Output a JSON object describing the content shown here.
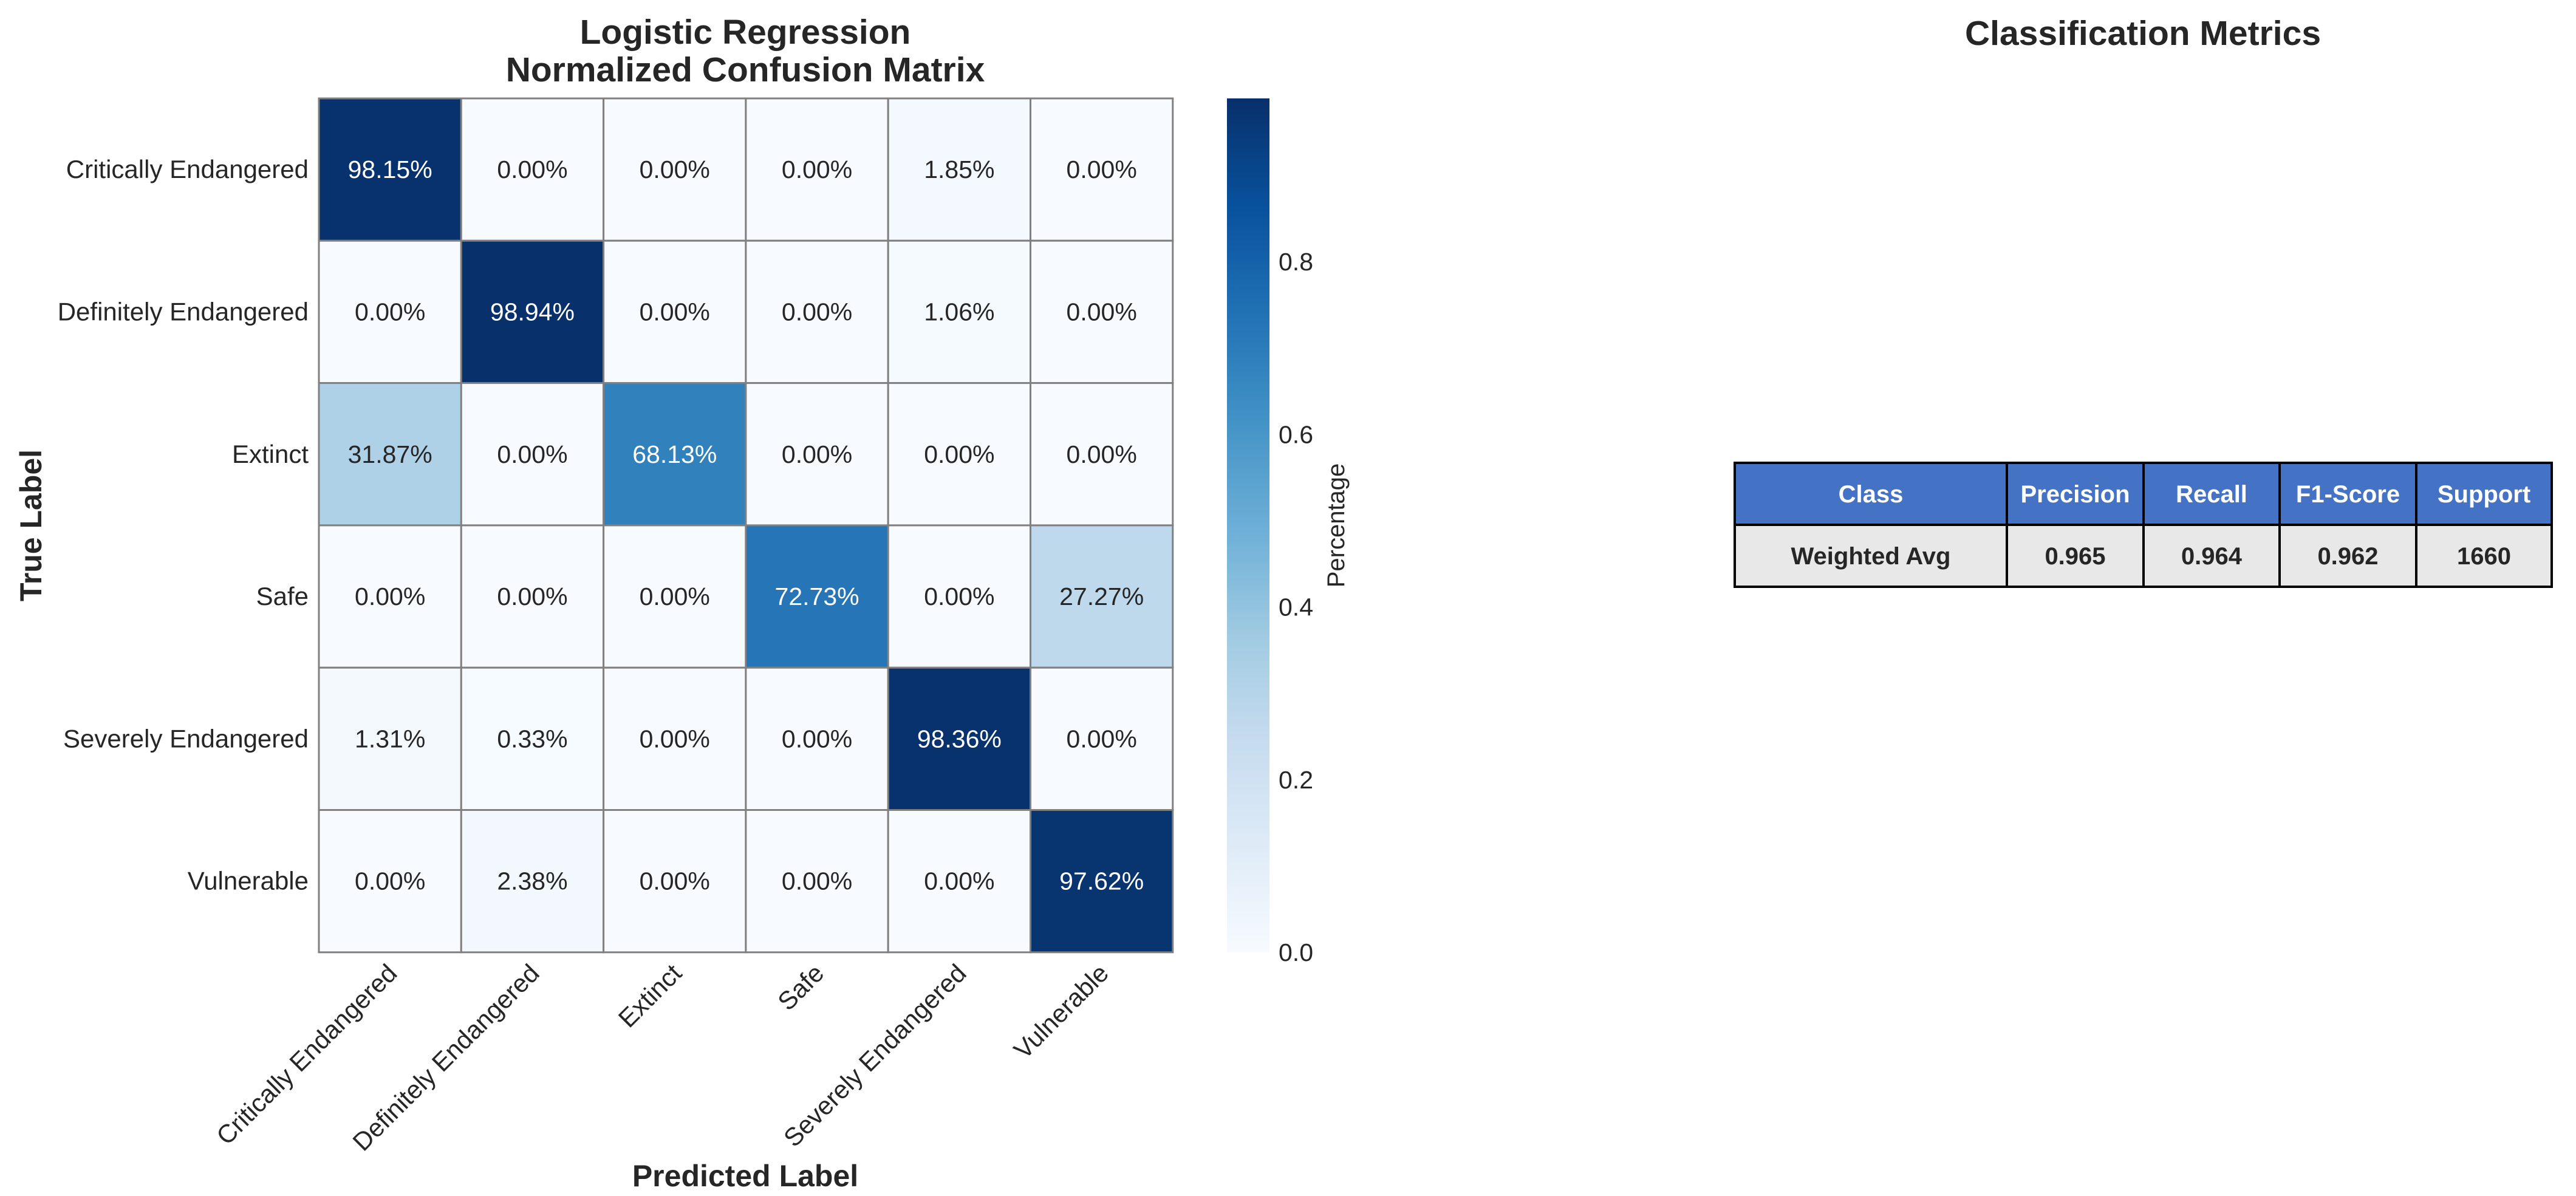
{
  "chart_data": [
    {
      "type": "heatmap",
      "title": "Logistic Regression\nNormalized Confusion Matrix",
      "xlabel": "Predicted Label",
      "ylabel": "True Label",
      "x_categories": [
        "Critically Endangered",
        "Definitely Endangered",
        "Extinct",
        "Safe",
        "Severely Endangered",
        "Vulnerable"
      ],
      "y_categories": [
        "Critically Endangered",
        "Definitely Endangered",
        "Extinct",
        "Safe",
        "Severely Endangered",
        "Vulnerable"
      ],
      "values": [
        [
          0.9815,
          0.0,
          0.0,
          0.0,
          0.0185,
          0.0
        ],
        [
          0.0,
          0.9894,
          0.0,
          0.0,
          0.0106,
          0.0
        ],
        [
          0.3187,
          0.0,
          0.6813,
          0.0,
          0.0,
          0.0
        ],
        [
          0.0,
          0.0,
          0.0,
          0.7273,
          0.0,
          0.2727
        ],
        [
          0.0131,
          0.0033,
          0.0,
          0.0,
          0.9836,
          0.0
        ],
        [
          0.0,
          0.0238,
          0.0,
          0.0,
          0.0,
          0.9762
        ]
      ],
      "cell_labels": [
        [
          "98.15%",
          "0.00%",
          "0.00%",
          "0.00%",
          "1.85%",
          "0.00%"
        ],
        [
          "0.00%",
          "98.94%",
          "0.00%",
          "0.00%",
          "1.06%",
          "0.00%"
        ],
        [
          "31.87%",
          "0.00%",
          "68.13%",
          "0.00%",
          "0.00%",
          "0.00%"
        ],
        [
          "0.00%",
          "0.00%",
          "0.00%",
          "72.73%",
          "0.00%",
          "27.27%"
        ],
        [
          "1.31%",
          "0.33%",
          "0.00%",
          "0.00%",
          "98.36%",
          "0.00%"
        ],
        [
          "0.00%",
          "2.38%",
          "0.00%",
          "0.00%",
          "0.00%",
          "97.62%"
        ]
      ],
      "colormap": "Blues",
      "colorbar": {
        "label": "Percentage",
        "range": [
          0.0,
          0.9894
        ],
        "ticks": [
          0.0,
          0.2,
          0.4,
          0.6,
          0.8
        ],
        "tick_labels": [
          "0.0",
          "0.2",
          "0.4",
          "0.6",
          "0.8"
        ]
      }
    },
    {
      "type": "table",
      "title": "Classification Metrics",
      "columns": [
        "Class",
        "Precision",
        "Recall",
        "F1-Score",
        "Support"
      ],
      "rows": [
        [
          "Weighted Avg",
          "0.965",
          "0.964",
          "0.962",
          "1660"
        ]
      ],
      "header_color": "#4472C4",
      "row_color": "#E8E8E8"
    }
  ]
}
